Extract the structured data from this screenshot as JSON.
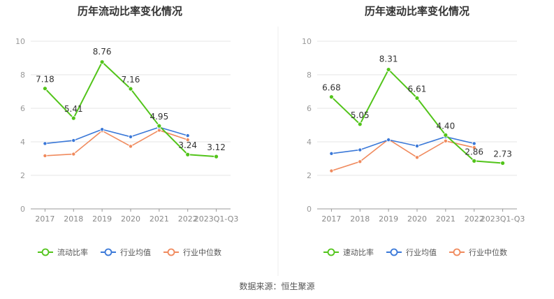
{
  "source": {
    "label": "数据来源：",
    "value": "恒生聚源"
  },
  "colors": {
    "primary": "#52c41a",
    "industry_avg": "#3a78d8",
    "industry_median": "#f08a5d"
  },
  "chart_data": [
    {
      "type": "line",
      "title": "历年流动比率变化情况",
      "categories": [
        "2017",
        "2018",
        "2019",
        "2020",
        "2021",
        "2022",
        "2023Q1-Q3"
      ],
      "ylim": [
        0,
        10
      ],
      "yticks": [
        "0",
        "2",
        "4",
        "6",
        "8",
        "10"
      ],
      "grid": true,
      "legend_position": "bottom",
      "series": [
        {
          "name": "流动比率",
          "values": [
            7.18,
            5.41,
            8.76,
            7.16,
            4.95,
            3.24,
            3.12
          ],
          "labels": [
            "7.18",
            "5.41",
            "8.76",
            "7.16",
            "4.95",
            "3.24",
            "3.12"
          ]
        },
        {
          "name": "行业均值",
          "values": [
            3.9,
            4.08,
            4.74,
            4.3,
            4.87,
            4.37,
            null
          ]
        },
        {
          "name": "行业中位数",
          "values": [
            3.17,
            3.27,
            4.66,
            3.73,
            4.69,
            4.12,
            null
          ]
        }
      ]
    },
    {
      "type": "line",
      "title": "历年速动比率变化情况",
      "categories": [
        "2017",
        "2018",
        "2019",
        "2020",
        "2021",
        "2022",
        "2023Q1-Q3"
      ],
      "ylim": [
        0,
        10
      ],
      "yticks": [
        "0",
        "2",
        "4",
        "6",
        "8",
        "10"
      ],
      "grid": true,
      "legend_position": "bottom",
      "series": [
        {
          "name": "速动比率",
          "values": [
            6.68,
            5.05,
            8.31,
            6.61,
            4.4,
            2.86,
            2.73
          ],
          "labels": [
            "6.68",
            "5.05",
            "8.31",
            "6.61",
            "4.40",
            "2.86",
            "2.73"
          ]
        },
        {
          "name": "行业均值",
          "values": [
            3.3,
            3.52,
            4.12,
            3.75,
            4.3,
            3.9,
            null
          ]
        },
        {
          "name": "行业中位数",
          "values": [
            2.27,
            2.82,
            4.15,
            3.07,
            4.05,
            3.66,
            null
          ]
        }
      ]
    }
  ]
}
